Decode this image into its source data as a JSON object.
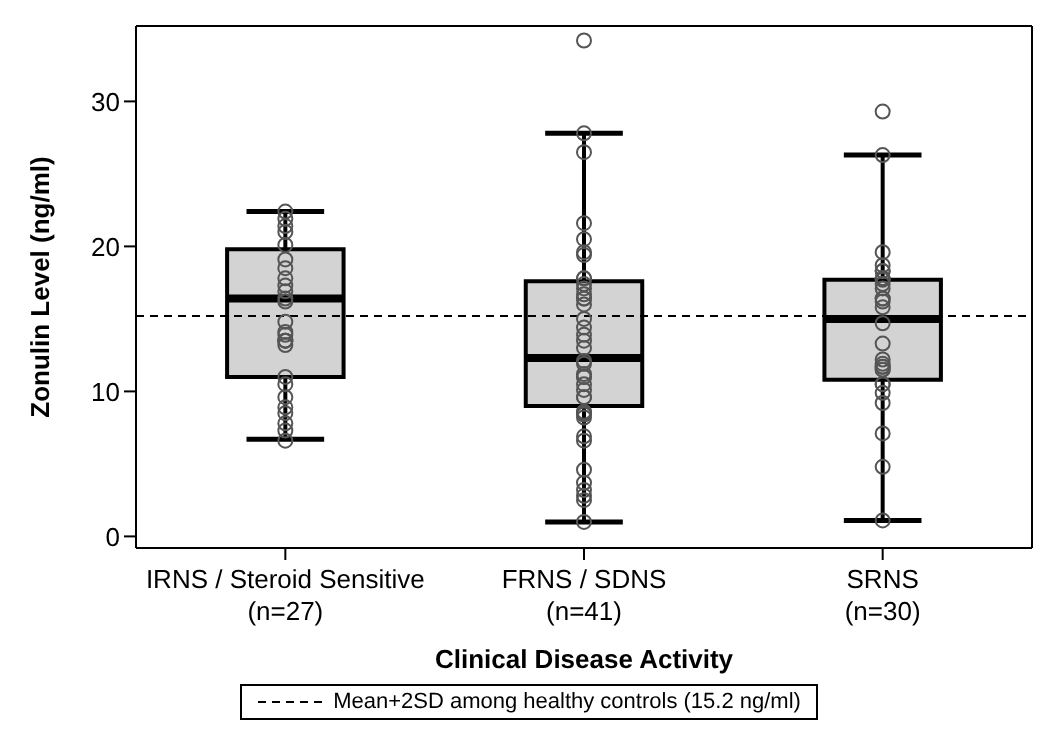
{
  "chart_data": {
    "type": "box",
    "xlabel": "Clinical Disease Activity",
    "ylabel": "Zonulin Level (ng/ml)",
    "categories": [
      "IRNS / Steroid Sensitive\n(n=27)",
      "FRNS / SDNS\n(n=41)",
      "SRNS\n(n=30)"
    ],
    "boxes": [
      {
        "low": 6.7,
        "q1": 11.0,
        "median": 16.4,
        "q3": 19.8,
        "high": 22.4
      },
      {
        "low": 1.0,
        "q1": 9.0,
        "median": 12.3,
        "q3": 17.6,
        "high": 27.8
      },
      {
        "low": 1.1,
        "q1": 10.8,
        "median": 15.0,
        "q3": 17.7,
        "high": 26.3
      }
    ],
    "color": "#d3d3d3",
    "series": [
      {
        "type": "scatter",
        "color": "#555555",
        "x": [
          "IRNS / Steroid Sensitive\n(n=27)",
          "IRNS / Steroid Sensitive\n(n=27)",
          "IRNS / Steroid Sensitive\n(n=27)",
          "IRNS / Steroid Sensitive\n(n=27)",
          "IRNS / Steroid Sensitive\n(n=27)",
          "IRNS / Steroid Sensitive\n(n=27)",
          "IRNS / Steroid Sensitive\n(n=27)",
          "IRNS / Steroid Sensitive\n(n=27)",
          "IRNS / Steroid Sensitive\n(n=27)",
          "IRNS / Steroid Sensitive\n(n=27)",
          "IRNS / Steroid Sensitive\n(n=27)",
          "IRNS / Steroid Sensitive\n(n=27)",
          "IRNS / Steroid Sensitive\n(n=27)",
          "IRNS / Steroid Sensitive\n(n=27)",
          "IRNS / Steroid Sensitive\n(n=27)",
          "IRNS / Steroid Sensitive\n(n=27)",
          "IRNS / Steroid Sensitive\n(n=27)",
          "IRNS / Steroid Sensitive\n(n=27)",
          "IRNS / Steroid Sensitive\n(n=27)",
          "IRNS / Steroid Sensitive\n(n=27)",
          "IRNS / Steroid Sensitive\n(n=27)",
          "IRNS / Steroid Sensitive\n(n=27)",
          "IRNS / Steroid Sensitive\n(n=27)",
          "IRNS / Steroid Sensitive\n(n=27)",
          "IRNS / Steroid Sensitive\n(n=27)",
          "IRNS / Steroid Sensitive\n(n=27)",
          "IRNS / Steroid Sensitive\n(n=27)",
          "FRNS / SDNS\n(n=41)",
          "FRNS / SDNS\n(n=41)",
          "FRNS / SDNS\n(n=41)",
          "FRNS / SDNS\n(n=41)",
          "FRNS / SDNS\n(n=41)",
          "FRNS / SDNS\n(n=41)",
          "FRNS / SDNS\n(n=41)",
          "FRNS / SDNS\n(n=41)",
          "FRNS / SDNS\n(n=41)",
          "FRNS / SDNS\n(n=41)",
          "FRNS / SDNS\n(n=41)",
          "FRNS / SDNS\n(n=41)",
          "FRNS / SDNS\n(n=41)",
          "FRNS / SDNS\n(n=41)",
          "FRNS / SDNS\n(n=41)",
          "FRNS / SDNS\n(n=41)",
          "FRNS / SDNS\n(n=41)",
          "FRNS / SDNS\n(n=41)",
          "FRNS / SDNS\n(n=41)",
          "FRNS / SDNS\n(n=41)",
          "FRNS / SDNS\n(n=41)",
          "FRNS / SDNS\n(n=41)",
          "FRNS / SDNS\n(n=41)",
          "FRNS / SDNS\n(n=41)",
          "FRNS / SDNS\n(n=41)",
          "FRNS / SDNS\n(n=41)",
          "FRNS / SDNS\n(n=41)",
          "FRNS / SDNS\n(n=41)",
          "FRNS / SDNS\n(n=41)",
          "FRNS / SDNS\n(n=41)",
          "FRNS / SDNS\n(n=41)",
          "FRNS / SDNS\n(n=41)",
          "FRNS / SDNS\n(n=41)",
          "FRNS / SDNS\n(n=41)",
          "FRNS / SDNS\n(n=41)",
          "FRNS / SDNS\n(n=41)",
          "FRNS / SDNS\n(n=41)",
          "FRNS / SDNS\n(n=41)",
          "FRNS / SDNS\n(n=41)",
          "FRNS / SDNS\n(n=41)",
          "FRNS / SDNS\n(n=41)",
          "SRNS\n(n=30)",
          "SRNS\n(n=30)",
          "SRNS\n(n=30)",
          "SRNS\n(n=30)",
          "SRNS\n(n=30)",
          "SRNS\n(n=30)",
          "SRNS\n(n=30)",
          "SRNS\n(n=30)",
          "SRNS\n(n=30)",
          "SRNS\n(n=30)",
          "SRNS\n(n=30)",
          "SRNS\n(n=30)",
          "SRNS\n(n=30)",
          "SRNS\n(n=30)",
          "SRNS\n(n=30)",
          "SRNS\n(n=30)",
          "SRNS\n(n=30)",
          "SRNS\n(n=30)",
          "SRNS\n(n=30)",
          "SRNS\n(n=30)",
          "SRNS\n(n=30)",
          "SRNS\n(n=30)",
          "SRNS\n(n=30)",
          "SRNS\n(n=30)",
          "SRNS\n(n=30)",
          "SRNS\n(n=30)",
          "SRNS\n(n=30)",
          "SRNS\n(n=30)",
          "SRNS\n(n=30)",
          "SRNS\n(n=30)"
        ],
        "values": [
          22.4,
          21.9,
          21.4,
          21.0,
          20.1,
          19.1,
          18.5,
          17.8,
          17.3,
          16.9,
          16.4,
          16.2,
          14.8,
          14.1,
          13.9,
          13.5,
          13.5,
          13.5,
          13.2,
          11.0,
          10.5,
          9.6,
          8.9,
          8.5,
          7.8,
          7.3,
          6.6,
          34.2,
          27.8,
          26.5,
          21.6,
          20.5,
          19.6,
          19.4,
          17.8,
          17.8,
          17.4,
          17.1,
          16.7,
          16.4,
          16.4,
          16.0,
          15.0,
          14.4,
          13.9,
          13.5,
          13.0,
          12.1,
          11.9,
          11.2,
          11.0,
          11.0,
          10.5,
          10.1,
          9.6,
          9.6,
          8.6,
          8.5,
          8.4,
          8.2,
          6.9,
          6.6,
          4.6,
          3.7,
          3.2,
          2.8,
          2.5,
          1.0,
          29.3,
          26.3,
          19.6,
          18.7,
          18.3,
          18.3,
          17.8,
          17.8,
          17.7,
          17.4,
          17.1,
          16.4,
          16.4,
          16.2,
          15.8,
          14.7,
          13.3,
          12.2,
          11.9,
          11.7,
          11.7,
          11.5,
          11.5,
          10.5,
          10.5,
          9.9,
          9.2,
          7.1,
          4.8,
          1.1
        ]
      }
    ],
    "marker": "circle",
    "ylim": [
      -0.8,
      35.2
    ],
    "yticks": [
      0,
      10,
      20,
      30
    ],
    "ref_lines": [
      {
        "axis": "y",
        "value": 15.2,
        "label": "Mean+2SD among healthy controls (15.2 ng/ml)",
        "color": "#000000",
        "line_style": "dashed"
      }
    ],
    "legend": "bottom"
  }
}
